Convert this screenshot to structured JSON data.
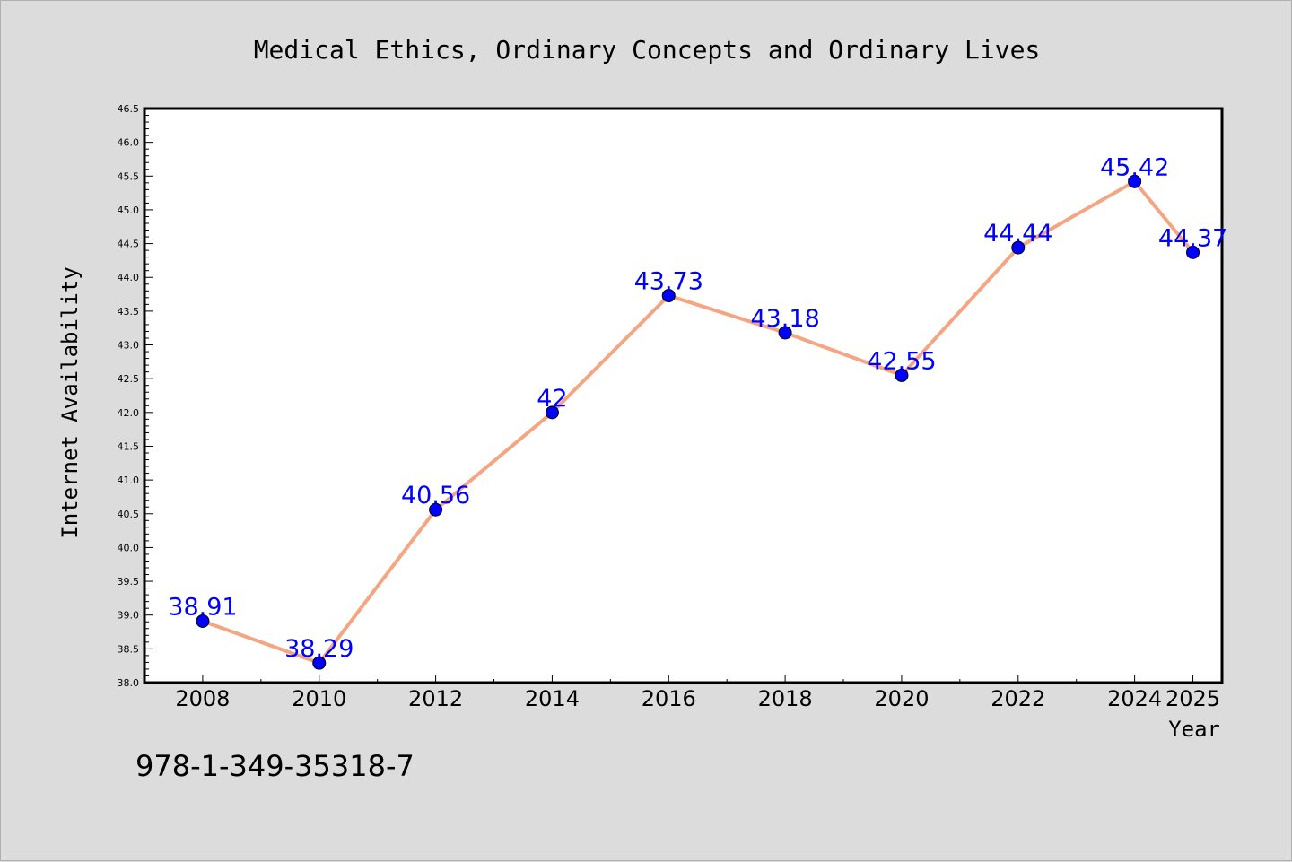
{
  "chart_data": {
    "type": "line",
    "title": "Medical Ethics, Ordinary Concepts and Ordinary Lives",
    "xlabel": "Year",
    "ylabel": "Internet Availability",
    "x": [
      "2008",
      "2010",
      "2012",
      "2014",
      "2016",
      "2018",
      "2020",
      "2022",
      "2024",
      "2025"
    ],
    "series": [
      {
        "values": [
          38.91,
          38.29,
          40.56,
          42,
          43.73,
          43.18,
          42.55,
          44.44,
          45.42,
          44.37
        ],
        "data_labels": [
          "38.91",
          "38.29",
          "40.56",
          "42",
          "43.73",
          "43.18",
          "42.55",
          "44.44",
          "45.42",
          "44.37"
        ]
      }
    ],
    "ylim": [
      38.0,
      46.5
    ],
    "yticks": [
      "38.0",
      "38.5",
      "39.0",
      "39.5",
      "40.0",
      "40.5",
      "41.0",
      "41.5",
      "42.0",
      "42.5",
      "43.0",
      "43.5",
      "44.0",
      "44.5",
      "45.0",
      "45.5",
      "46.0",
      "46.5"
    ],
    "grid": false,
    "legend": "none",
    "colors": {
      "line": "#f4a582",
      "marker": "#0000ff",
      "labels": "#0000ff",
      "background": "#dcdcdc",
      "plot_background": "#ffffff"
    }
  },
  "footer": {
    "isbn": "978-1-349-35318-7"
  }
}
